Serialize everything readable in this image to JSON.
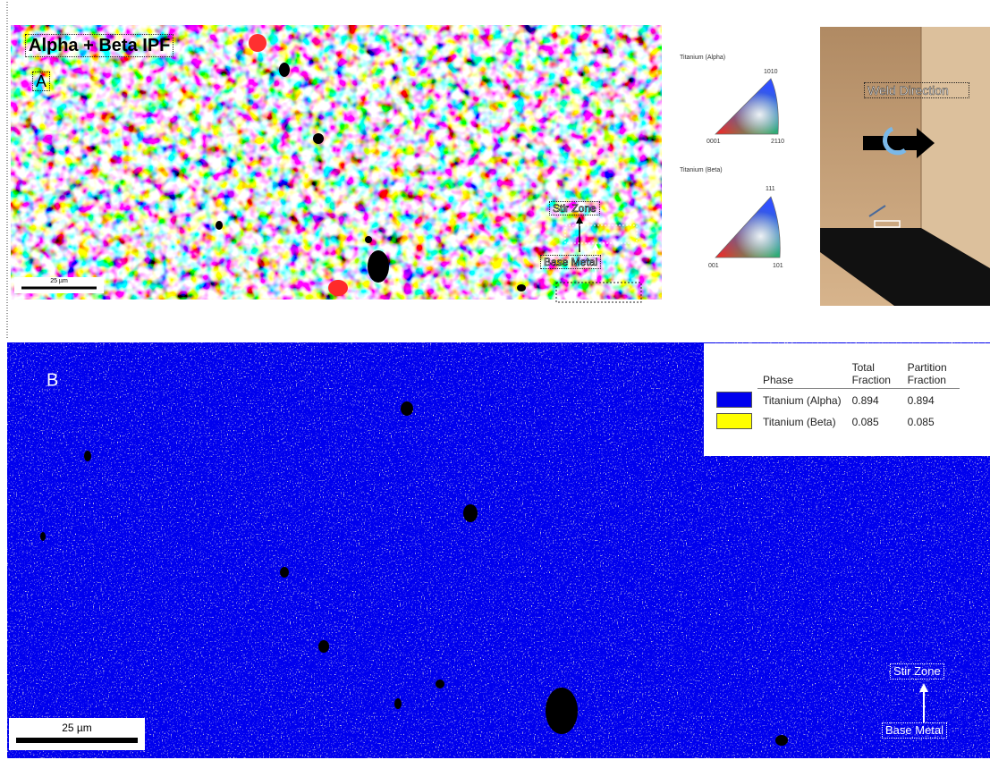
{
  "panel_a": {
    "title": "Alpha + Beta IPF",
    "label": "A",
    "scale_bar": "25 µm",
    "stir_zone": "Stir Zone",
    "base_metal": "Base Metal"
  },
  "ipf_legend": {
    "alpha": {
      "title": "Titanium (Alpha)",
      "corners": [
        "0001",
        "2110",
        "1010"
      ]
    },
    "beta": {
      "title": "Titanium (Beta)",
      "corners": [
        "001",
        "101",
        "111"
      ]
    }
  },
  "photo": {
    "label": "Weld Direction"
  },
  "panel_b": {
    "label": "B",
    "scale_bar": "25 µm",
    "stir_zone": "Stir Zone",
    "base_metal": "Base Metal",
    "table": {
      "headers": [
        "Phase",
        "Total Fraction",
        "Partition Fraction"
      ],
      "rows": [
        {
          "phase": "Titanium (Alpha)",
          "color": "#0000ee",
          "total": "0.894",
          "partition": "0.894"
        },
        {
          "phase": "Titanium (Beta)",
          "color": "#ffff00",
          "total": "0.085",
          "partition": "0.085"
        }
      ]
    }
  }
}
